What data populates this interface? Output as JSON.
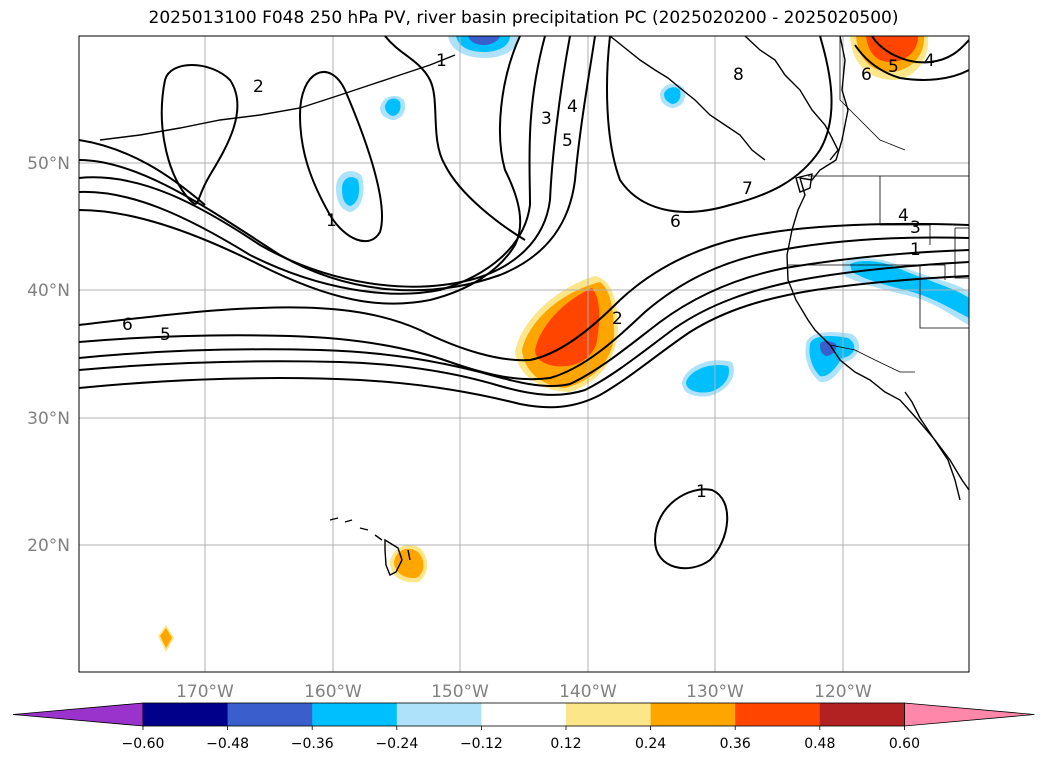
{
  "title": "2025013100 F048 250 hPa PV, river basin precipitation PC (2025020200 - 2025020500)",
  "lat_labels": [
    "50°N",
    "40°N",
    "30°N",
    "20°N"
  ],
  "lon_labels": [
    "170°W",
    "160°W",
    "150°W",
    "140°W",
    "130°W",
    "120°W"
  ],
  "colorbar": {
    "colors": [
      "#9933cc",
      "#00008b",
      "#3a5fcd",
      "#00bfff",
      "#ade2fa",
      "#ffffff",
      "#fce68a",
      "#ffa500",
      "#ff4500",
      "#b22222",
      "#ff88aa"
    ],
    "ticks": [
      "−0.60",
      "−0.48",
      "−0.36",
      "−0.24",
      "−0.12",
      "0.12",
      "0.24",
      "0.36",
      "0.48",
      "0.60"
    ]
  },
  "pv_contour_labels": [
    "2",
    "1",
    "1",
    "3",
    "4",
    "5",
    "8",
    "6",
    "5",
    "4",
    "7",
    "6",
    "4",
    "3",
    "1",
    "6",
    "5",
    "2",
    "1"
  ]
}
